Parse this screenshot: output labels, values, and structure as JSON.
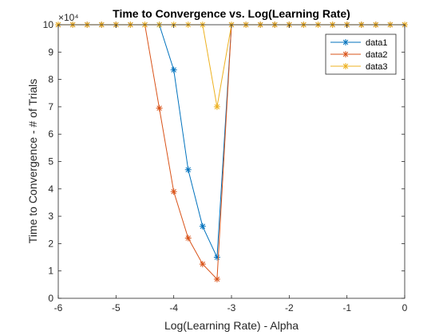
{
  "chart_data": {
    "type": "line",
    "title": "Time to Convergence vs. Log(Learning Rate)",
    "xlabel": "Log(Learning Rate) - Alpha",
    "ylabel": "Time to Convergence - # of Trials",
    "xlim": [
      -6,
      0
    ],
    "ylim": [
      0,
      10
    ],
    "y_multiplier_label": "×10⁴",
    "x_ticks": [
      -6,
      -5,
      -4,
      -3,
      -2,
      -1,
      0
    ],
    "y_ticks": [
      0,
      1,
      2,
      3,
      4,
      5,
      6,
      7,
      8,
      9,
      10
    ],
    "marker": "*",
    "legend_position": "top-right",
    "x": [
      -6,
      -5.75,
      -5.5,
      -5.25,
      -5,
      -4.75,
      -4.5,
      -4.25,
      -4,
      -3.75,
      -3.5,
      -3.25,
      -3,
      -2.75,
      -2.5,
      -2.25,
      -2,
      -1.75,
      -1.5,
      -1.25,
      -1,
      -0.75,
      -0.5,
      -0.25,
      0
    ],
    "series": [
      {
        "name": "data1",
        "color": "#0072BD",
        "values": [
          10,
          10,
          10,
          10,
          10,
          10,
          10,
          10,
          8.35,
          4.7,
          2.63,
          1.5,
          10,
          10,
          10,
          10,
          10,
          10,
          10,
          10,
          10,
          10,
          10,
          10,
          10
        ]
      },
      {
        "name": "data2",
        "color": "#D95319",
        "values": [
          10,
          10,
          10,
          10,
          10,
          10,
          10,
          6.95,
          3.9,
          2.2,
          1.25,
          0.7,
          10,
          10,
          10,
          10,
          10,
          10,
          10,
          10,
          10,
          10,
          10,
          10,
          10
        ]
      },
      {
        "name": "data3",
        "color": "#EDB120",
        "values": [
          10,
          10,
          10,
          10,
          10,
          10,
          10,
          10,
          10,
          10,
          10,
          7,
          10,
          10,
          10,
          10,
          10,
          10,
          10,
          10,
          10,
          10,
          10,
          10,
          10
        ]
      }
    ]
  }
}
